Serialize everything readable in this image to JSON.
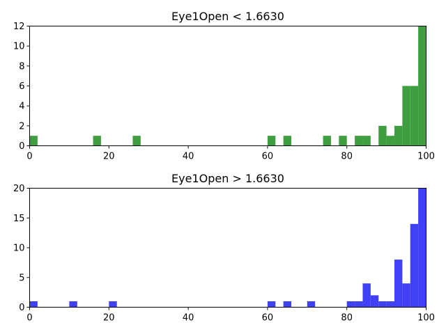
{
  "chart_data": [
    {
      "type": "bar",
      "title": "Eye1Open < 1.6630",
      "xlabel": "",
      "ylabel": "",
      "xlim": [
        0,
        100
      ],
      "ylim": [
        0,
        12
      ],
      "bin_width": 2,
      "color": "#3f9e3f",
      "xticks": [
        0,
        20,
        40,
        60,
        80,
        100
      ],
      "yticks": [
        0,
        2,
        4,
        6,
        8,
        10,
        12
      ],
      "grid": false,
      "bins": [
        {
          "x": 0,
          "y": 1
        },
        {
          "x": 16,
          "y": 1
        },
        {
          "x": 26,
          "y": 1
        },
        {
          "x": 60,
          "y": 1
        },
        {
          "x": 64,
          "y": 1
        },
        {
          "x": 74,
          "y": 1
        },
        {
          "x": 78,
          "y": 1
        },
        {
          "x": 82,
          "y": 1
        },
        {
          "x": 84,
          "y": 1
        },
        {
          "x": 88,
          "y": 2
        },
        {
          "x": 90,
          "y": 1
        },
        {
          "x": 92,
          "y": 2
        },
        {
          "x": 94,
          "y": 6
        },
        {
          "x": 96,
          "y": 6
        },
        {
          "x": 98,
          "y": 12
        }
      ]
    },
    {
      "type": "bar",
      "title": "Eye1Open > 1.6630",
      "xlabel": "",
      "ylabel": "",
      "xlim": [
        0,
        100
      ],
      "ylim": [
        0,
        20
      ],
      "bin_width": 2,
      "color": "#4040f5",
      "xticks": [
        0,
        20,
        40,
        60,
        80,
        100
      ],
      "yticks": [
        0,
        5,
        10,
        15,
        20
      ],
      "grid": false,
      "bins": [
        {
          "x": 0,
          "y": 1
        },
        {
          "x": 10,
          "y": 1
        },
        {
          "x": 20,
          "y": 1
        },
        {
          "x": 60,
          "y": 1
        },
        {
          "x": 64,
          "y": 1
        },
        {
          "x": 70,
          "y": 1
        },
        {
          "x": 80,
          "y": 1
        },
        {
          "x": 82,
          "y": 1
        },
        {
          "x": 84,
          "y": 4
        },
        {
          "x": 86,
          "y": 2
        },
        {
          "x": 88,
          "y": 1
        },
        {
          "x": 90,
          "y": 1
        },
        {
          "x": 92,
          "y": 8
        },
        {
          "x": 94,
          "y": 4
        },
        {
          "x": 96,
          "y": 14
        },
        {
          "x": 98,
          "y": 20
        }
      ]
    }
  ]
}
